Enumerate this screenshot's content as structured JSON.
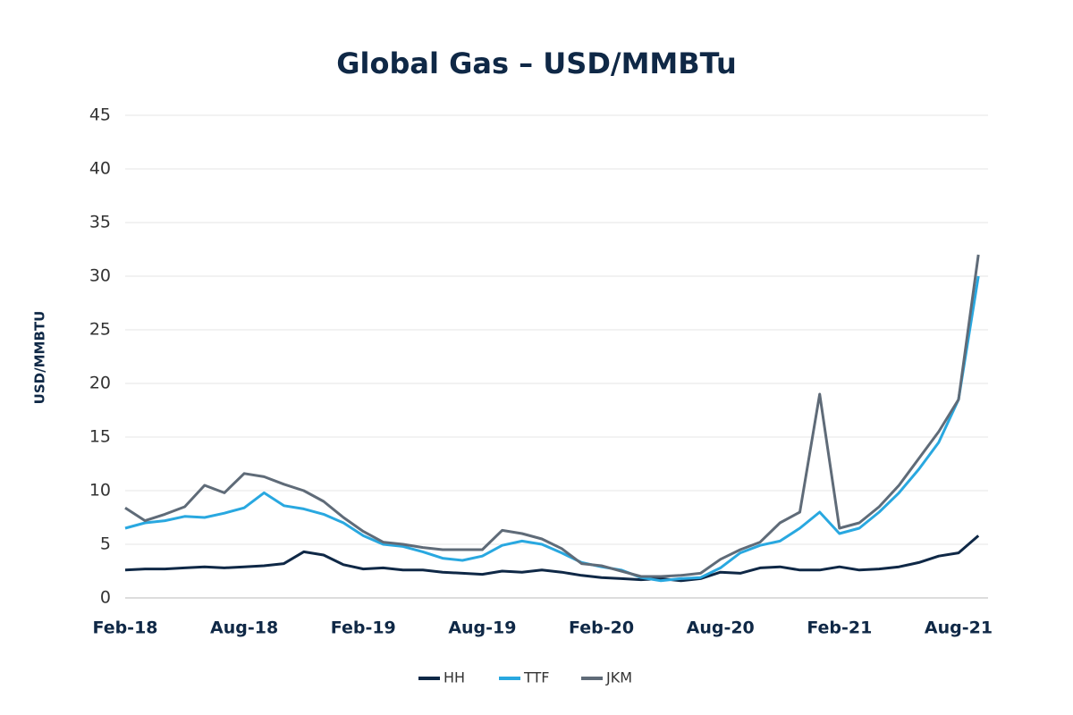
{
  "chart_data": {
    "type": "line",
    "title": "Global Gas – USD/MMBTu",
    "y_label": "USD/MMBTU",
    "categories": [
      "Feb-18",
      null,
      null,
      null,
      null,
      null,
      "Aug-18",
      null,
      null,
      null,
      null,
      null,
      "Feb-19",
      null,
      null,
      null,
      null,
      null,
      "Aug-19",
      null,
      null,
      null,
      null,
      null,
      "Feb-20",
      null,
      null,
      null,
      null,
      null,
      "Aug-20",
      null,
      null,
      null,
      null,
      null,
      "Feb-21",
      null,
      null,
      null,
      null,
      null,
      "Aug-21",
      null
    ],
    "series": [
      {
        "name": "HH",
        "color": "#0f2846",
        "values": [
          2.6,
          2.7,
          2.7,
          2.8,
          2.9,
          2.8,
          2.9,
          3.0,
          3.2,
          4.3,
          4.0,
          3.1,
          2.7,
          2.8,
          2.6,
          2.6,
          2.4,
          2.3,
          2.2,
          2.5,
          2.4,
          2.6,
          2.4,
          2.1,
          1.9,
          1.8,
          1.7,
          1.8,
          1.6,
          1.8,
          2.4,
          2.3,
          2.8,
          2.9,
          2.6,
          2.6,
          2.9,
          2.6,
          2.7,
          2.9,
          3.3,
          3.9,
          4.2,
          5.8
        ]
      },
      {
        "name": "TTF",
        "color": "#29a8e0",
        "values": [
          6.5,
          7.0,
          7.2,
          7.6,
          7.5,
          7.9,
          8.4,
          9.8,
          8.6,
          8.3,
          7.8,
          7.0,
          5.8,
          5.0,
          4.8,
          4.3,
          3.7,
          3.5,
          3.9,
          4.9,
          5.3,
          5.0,
          4.2,
          3.3,
          2.9,
          2.6,
          1.9,
          1.6,
          1.8,
          1.9,
          2.8,
          4.2,
          4.9,
          5.3,
          6.5,
          8.0,
          6.0,
          6.5,
          8.0,
          9.8,
          12.0,
          14.5,
          18.5,
          30.0
        ]
      },
      {
        "name": "JKM",
        "color": "#5f6b78",
        "values": [
          8.4,
          7.2,
          7.8,
          8.5,
          10.5,
          9.8,
          11.6,
          11.3,
          10.6,
          10.0,
          9.0,
          7.5,
          6.2,
          5.2,
          5.0,
          4.7,
          4.5,
          4.5,
          4.5,
          6.3,
          6.0,
          5.5,
          4.6,
          3.2,
          3.0,
          2.5,
          2.0,
          2.0,
          2.1,
          2.3,
          3.6,
          4.5,
          5.2,
          7.0,
          8.0,
          19.0,
          6.5,
          7.0,
          8.5,
          10.5,
          13.0,
          15.5,
          18.5,
          32.0
        ]
      }
    ],
    "ylim": [
      0,
      45
    ],
    "yticks": [
      0,
      5,
      10,
      15,
      20,
      25,
      30,
      35,
      40,
      45
    ],
    "grid": true
  }
}
